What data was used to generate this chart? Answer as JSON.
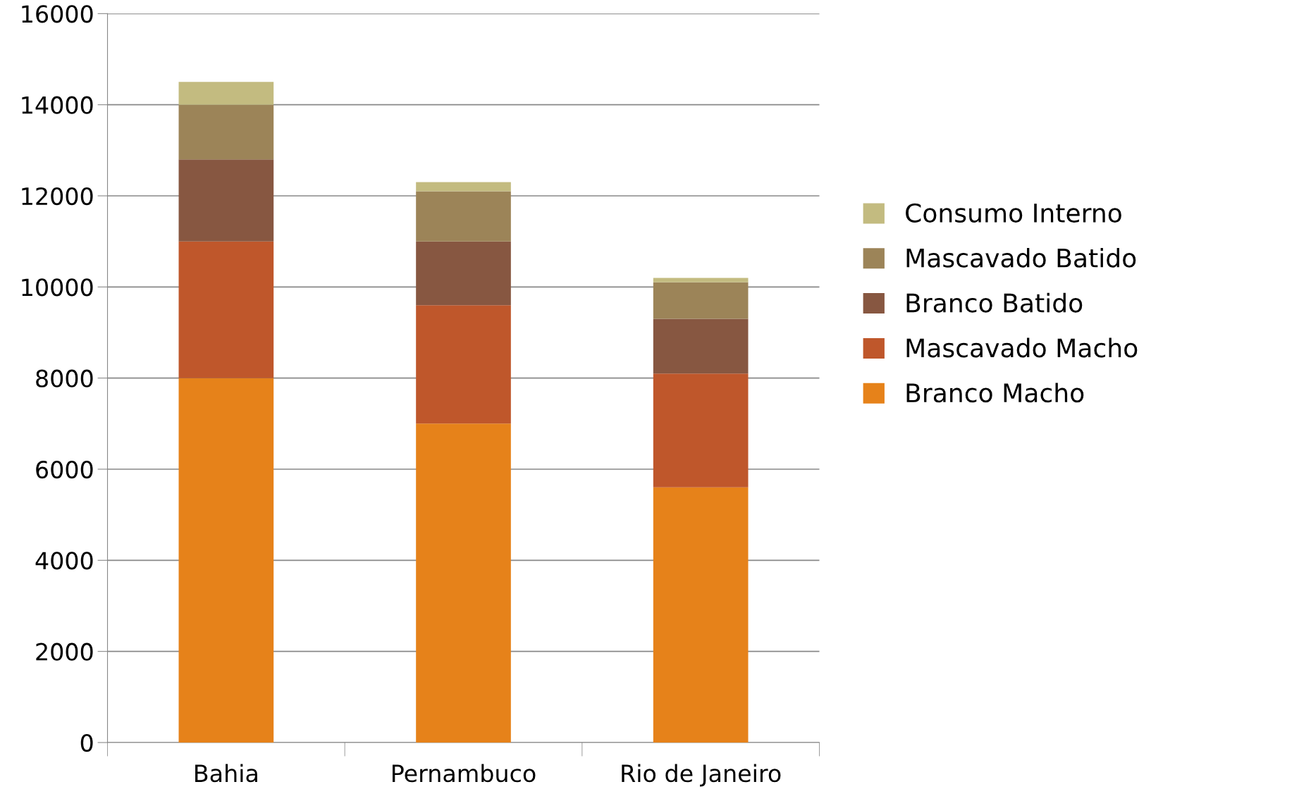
{
  "chart_data": {
    "type": "bar",
    "stacked": true,
    "categories": [
      "Bahia",
      "Pernambuco",
      "Rio de Janeiro"
    ],
    "series": [
      {
        "name": "Branco Macho",
        "color": "#e6821a",
        "values": [
          8000,
          7000,
          5600
        ]
      },
      {
        "name": "Mascavado Macho",
        "color": "#bf572b",
        "values": [
          3000,
          2600,
          2500
        ]
      },
      {
        "name": "Branco Batido",
        "color": "#875741",
        "values": [
          1800,
          1400,
          1200
        ]
      },
      {
        "name": "Mascavado Batido",
        "color": "#9c8458",
        "values": [
          1200,
          1100,
          800
        ]
      },
      {
        "name": "Consumo Interno",
        "color": "#c3bb80",
        "values": [
          500,
          200,
          100
        ]
      }
    ],
    "ylim": [
      0,
      16000
    ],
    "yticks": [
      0,
      2000,
      4000,
      6000,
      8000,
      10000,
      12000,
      14000,
      16000
    ],
    "grid": "y",
    "legend": "right"
  }
}
